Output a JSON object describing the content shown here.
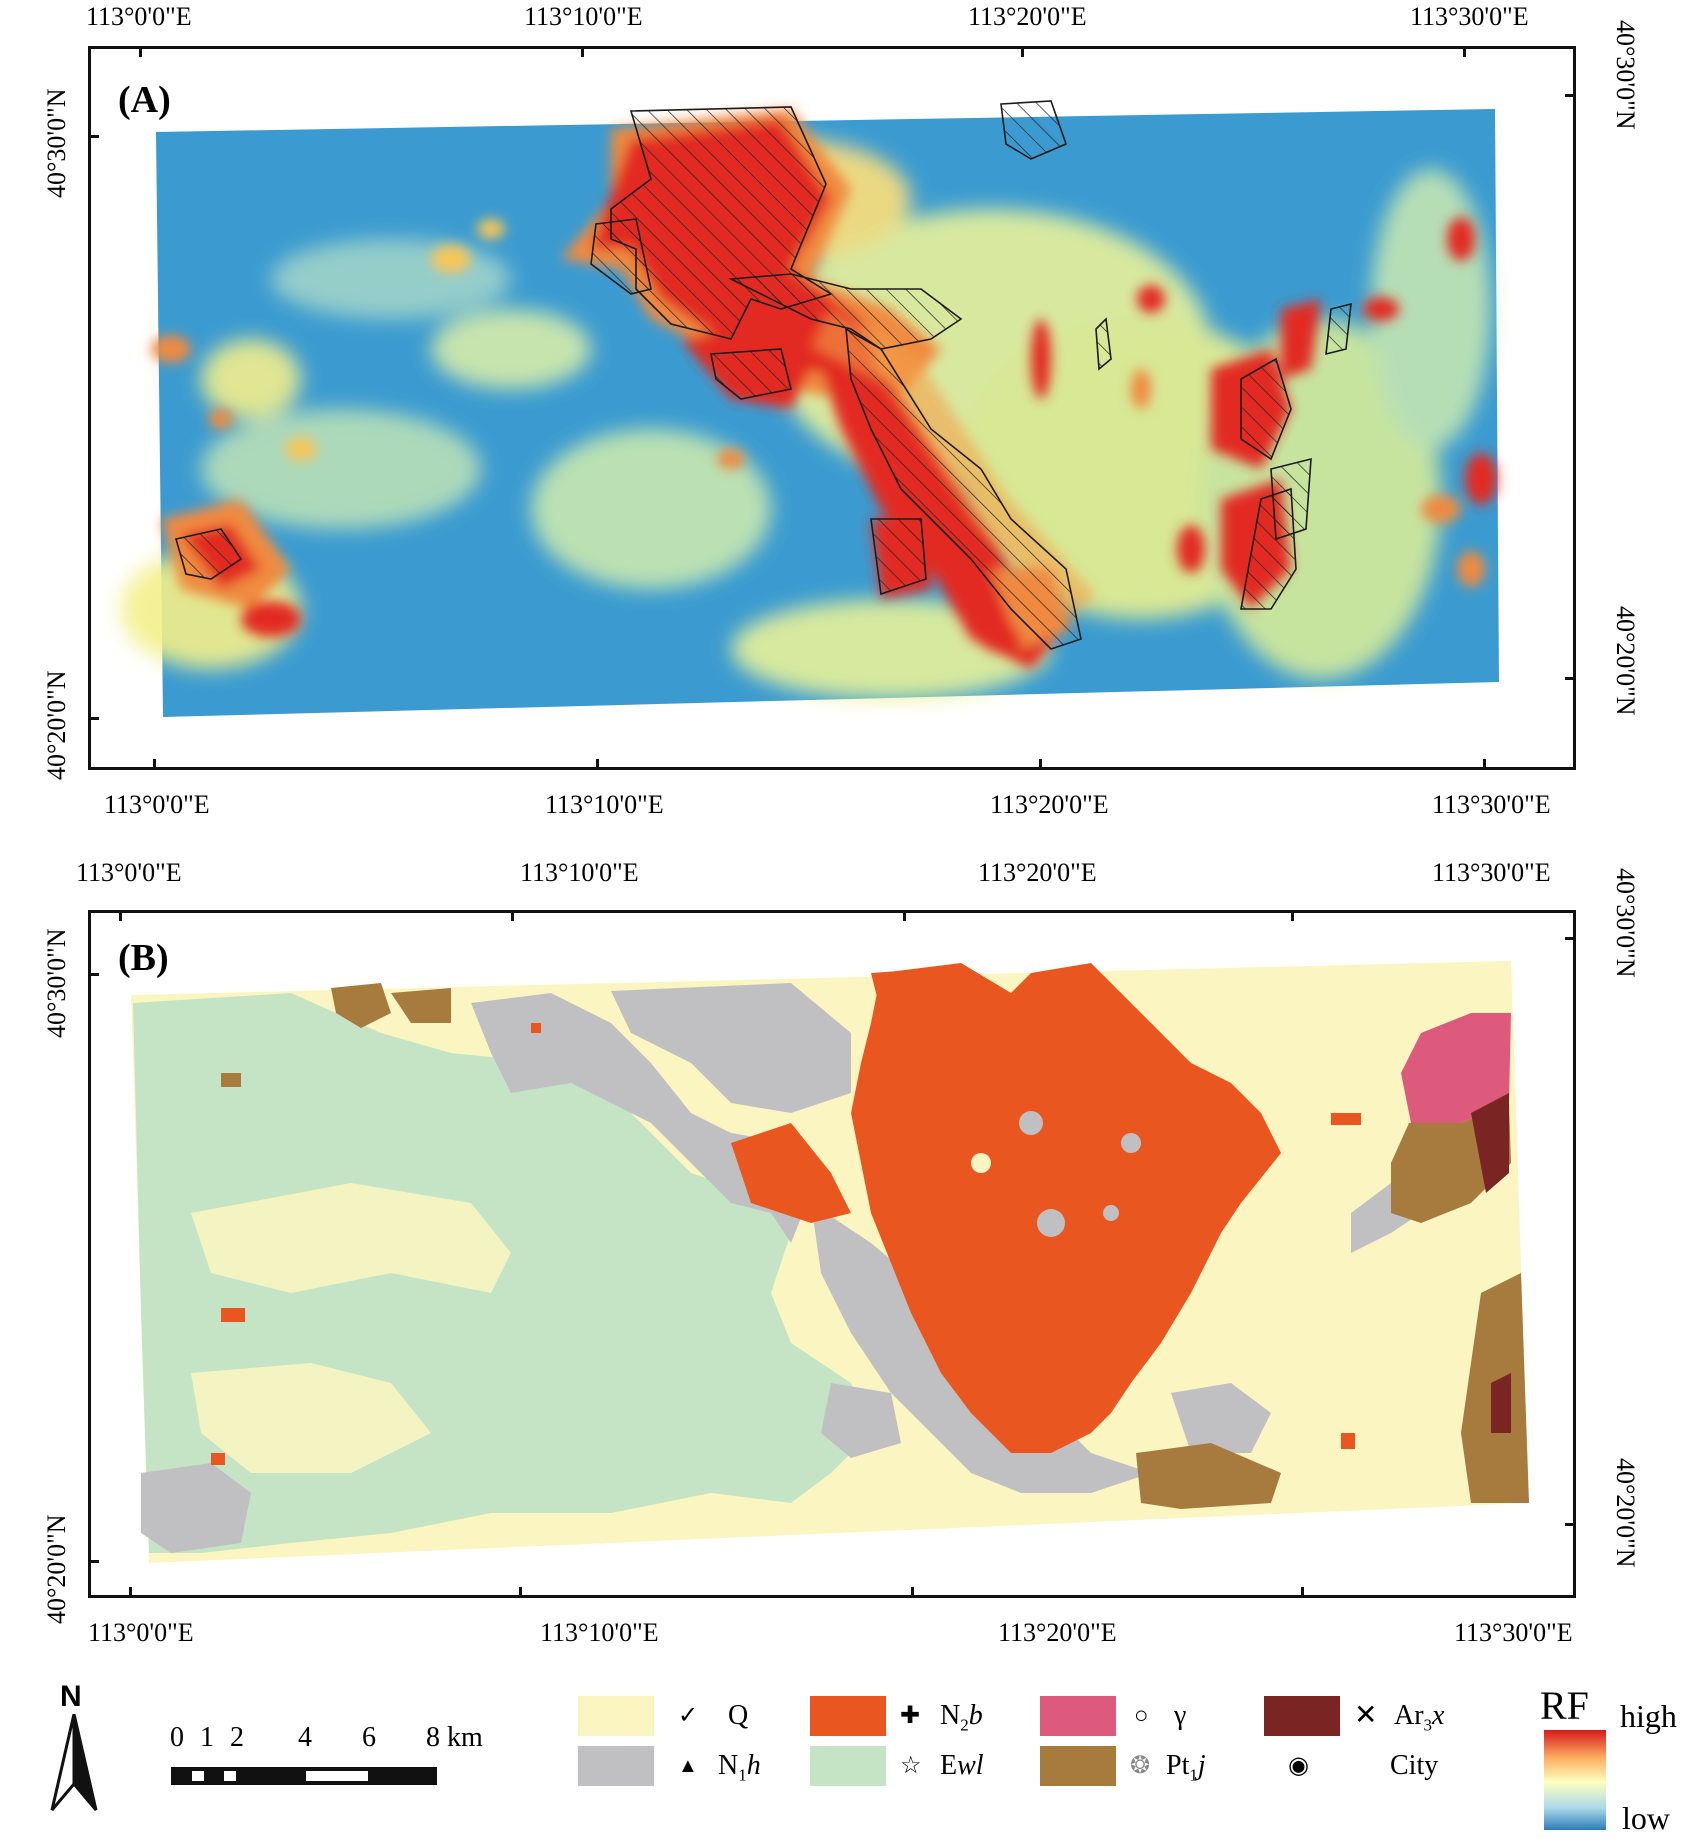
{
  "panel_a": {
    "label": "(A)",
    "top_ticks": [
      "113°0'0\"E",
      "113°10'0\"E",
      "113°20'0\"E",
      "113°30'0\"E"
    ],
    "bottom_ticks": [
      "113°0'0\"E",
      "113°10'0\"E",
      "113°20'0\"E",
      "113°30'0\"E"
    ],
    "left_ticks": [
      "40°30'0\"N",
      "40°20'0\"N"
    ],
    "right_ticks": [
      "40°30'0\"N",
      "40°20'0\"N"
    ]
  },
  "panel_b": {
    "label": "(B)",
    "top_ticks": [
      "113°0'0\"E",
      "113°10'0\"E",
      "113°20'0\"E",
      "113°30'0\"E"
    ],
    "bottom_ticks": [
      "113°0'0\"E",
      "113°10'0\"E",
      "113°20'0\"E",
      "113°30'0\"E"
    ],
    "left_ticks": [
      "40°30'0\"N",
      "40°20'0\"N"
    ],
    "right_ticks": [
      "40°30'0\"N",
      "40°20'0\"N"
    ]
  },
  "north_arrow": {
    "label": "N"
  },
  "scale_bar": {
    "ticks": [
      "0",
      "1",
      "2",
      "4",
      "6",
      "8 km"
    ]
  },
  "legend": {
    "items": [
      {
        "id": "Q",
        "symbol": "✓",
        "text": "Q",
        "color": "#fbf6c1"
      },
      {
        "id": "N1h",
        "symbol": "▲",
        "text_main": "N",
        "text_sub": "1",
        "text_tail": "h",
        "color": "#c0c0c2"
      },
      {
        "id": "N2b",
        "symbol": "✚",
        "text_main": "N",
        "text_sub": "2",
        "text_tail": "b",
        "color": "#e9561f"
      },
      {
        "id": "Ewl",
        "symbol": "☆",
        "text_main": "E",
        "text_tail": "wl",
        "color": "#c5e4c5"
      },
      {
        "id": "gamma",
        "symbol": "○",
        "text": "γ",
        "color": "#de5a7c"
      },
      {
        "id": "Pt1j",
        "symbol": "❂",
        "text_main": "Pt",
        "text_sub": "1",
        "text_tail": "j",
        "color": "#a77a3e"
      },
      {
        "id": "Ar3x",
        "symbol": "✕",
        "text_main": "Ar",
        "text_sub": "3",
        "text_tail": "x",
        "color": "#7a2524"
      },
      {
        "id": "City",
        "symbol": "◉",
        "text": "City"
      }
    ]
  },
  "colorbar": {
    "title": "RF",
    "high_label": "high",
    "low_label": "low",
    "colors": [
      "#d7191c",
      "#fdae61",
      "#ffffbf",
      "#abd9e9",
      "#2c7bb6"
    ]
  }
}
